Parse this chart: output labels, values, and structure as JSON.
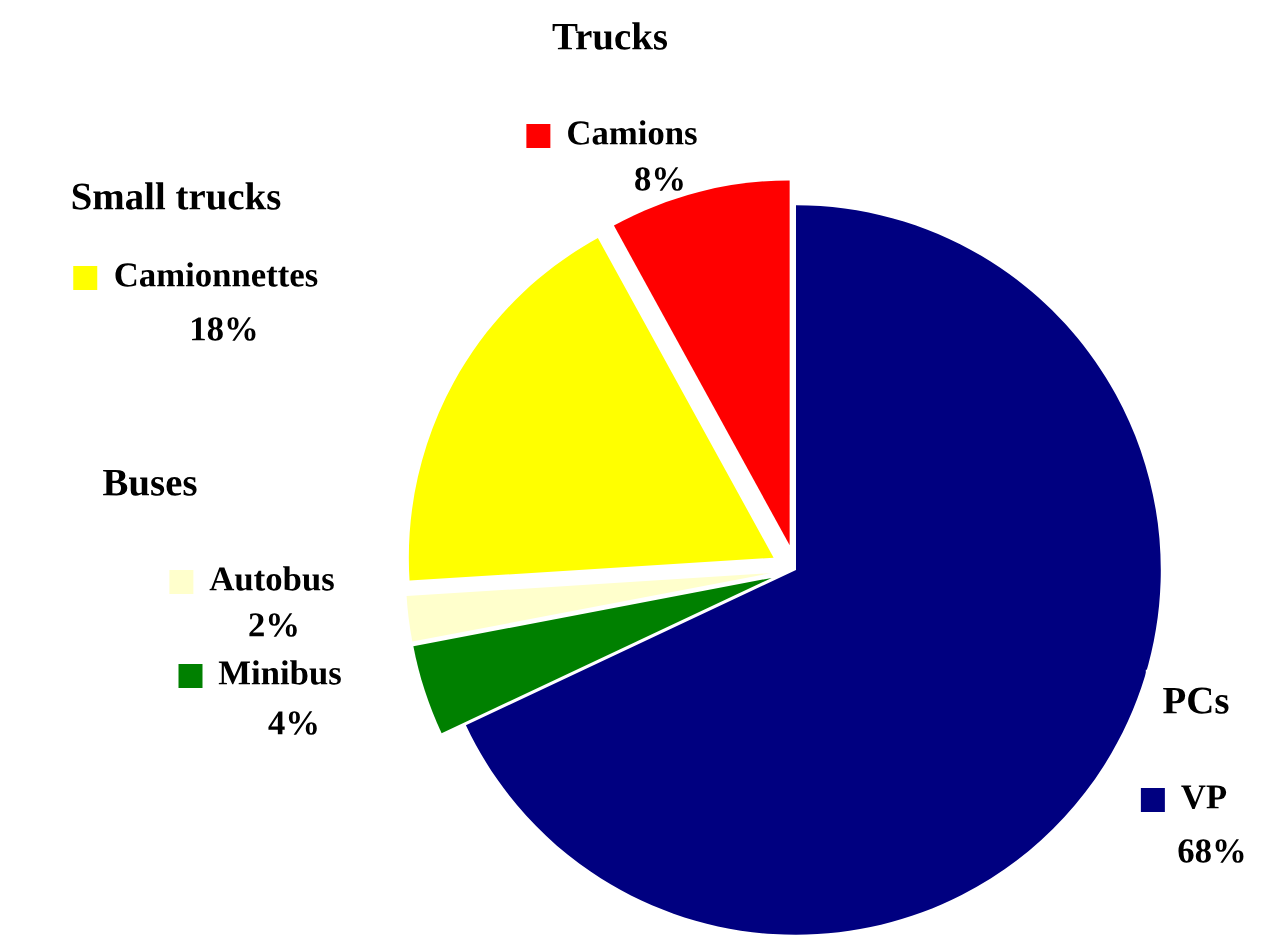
{
  "chart_data": {
    "type": "pie",
    "categories": [
      "VP",
      "Minibus",
      "Autobus",
      "Camionnettes",
      "Camions"
    ],
    "values": [
      68,
      4,
      2,
      18,
      8
    ],
    "colors": [
      "#000080",
      "#008000",
      "#ffffcc",
      "#ffff00",
      "#ff0000"
    ],
    "value_labels": [
      "68%",
      "4%",
      "2%",
      "18%",
      "8%"
    ],
    "annotations": [
      "PCs",
      "Buses",
      "Small trucks",
      "Trucks"
    ],
    "legend": "left"
  }
}
